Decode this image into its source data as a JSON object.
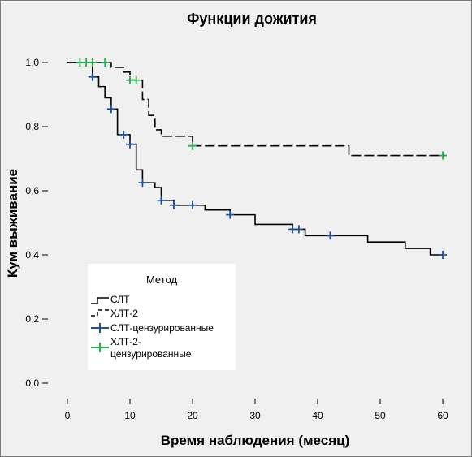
{
  "chart_data": {
    "type": "line",
    "title": "Функции дожития",
    "xlabel": "Время наблюдения (месяц)",
    "ylabel": "Кум выживание",
    "xlim": [
      0,
      60
    ],
    "ylim": [
      0,
      1
    ],
    "x_ticks": [
      "0",
      "10",
      "20",
      "30",
      "40",
      "50",
      "60"
    ],
    "y_ticks": [
      "0,0",
      "0,2",
      "0,4",
      "0,6",
      "0,8",
      "1,0"
    ],
    "grid": false,
    "legend_position": "bottom-left",
    "legend": {
      "title": "Метод",
      "entries": [
        {
          "label": "СЛТ",
          "kind": "step-solid",
          "color": "#000000"
        },
        {
          "label": "ХЛТ-2",
          "kind": "step-dashed",
          "color": "#000000"
        },
        {
          "label": "СЛТ-цензурированные",
          "kind": "censor",
          "color": "#1f4e9e"
        },
        {
          "label": "ХЛТ-2-цензурированные",
          "label_lines": [
            "ХЛТ-2-",
            "цензурированные"
          ],
          "kind": "censor",
          "color": "#22b14c"
        }
      ]
    },
    "series": [
      {
        "name": "СЛТ",
        "style": "solid",
        "color": "#000000",
        "steps": [
          [
            0,
            1.0
          ],
          [
            4,
            0.955
          ],
          [
            5,
            0.925
          ],
          [
            6,
            0.89
          ],
          [
            7,
            0.855
          ],
          [
            8,
            0.775
          ],
          [
            10,
            0.745
          ],
          [
            11,
            0.665
          ],
          [
            12,
            0.625
          ],
          [
            14,
            0.61
          ],
          [
            15,
            0.57
          ],
          [
            17,
            0.555
          ],
          [
            22,
            0.54
          ],
          [
            26,
            0.525
          ],
          [
            30,
            0.495
          ],
          [
            36,
            0.48
          ],
          [
            38,
            0.46
          ],
          [
            48,
            0.44
          ],
          [
            54,
            0.42
          ],
          [
            58,
            0.4
          ],
          [
            60,
            0.4
          ]
        ],
        "censored": [
          [
            4,
            0.955
          ],
          [
            7,
            0.855
          ],
          [
            9,
            0.775
          ],
          [
            10,
            0.745
          ],
          [
            12,
            0.625
          ],
          [
            15,
            0.57
          ],
          [
            17,
            0.555
          ],
          [
            20,
            0.555
          ],
          [
            26,
            0.525
          ],
          [
            36,
            0.48
          ],
          [
            37,
            0.48
          ],
          [
            42,
            0.46
          ],
          [
            60,
            0.4
          ]
        ]
      },
      {
        "name": "ХЛТ-2",
        "style": "dashed",
        "color": "#000000",
        "steps": [
          [
            0,
            1.0
          ],
          [
            6,
            1.0
          ],
          [
            7,
            0.985
          ],
          [
            9,
            0.97
          ],
          [
            10,
            0.945
          ],
          [
            12,
            0.885
          ],
          [
            13,
            0.835
          ],
          [
            14,
            0.79
          ],
          [
            15,
            0.77
          ],
          [
            20,
            0.74
          ],
          [
            45,
            0.71
          ],
          [
            60,
            0.71
          ]
        ],
        "censored": [
          [
            2,
            1.0
          ],
          [
            3,
            1.0
          ],
          [
            4,
            1.0
          ],
          [
            6,
            1.0
          ],
          [
            10,
            0.945
          ],
          [
            11,
            0.945
          ],
          [
            20,
            0.74
          ],
          [
            60,
            0.71
          ]
        ]
      }
    ]
  }
}
